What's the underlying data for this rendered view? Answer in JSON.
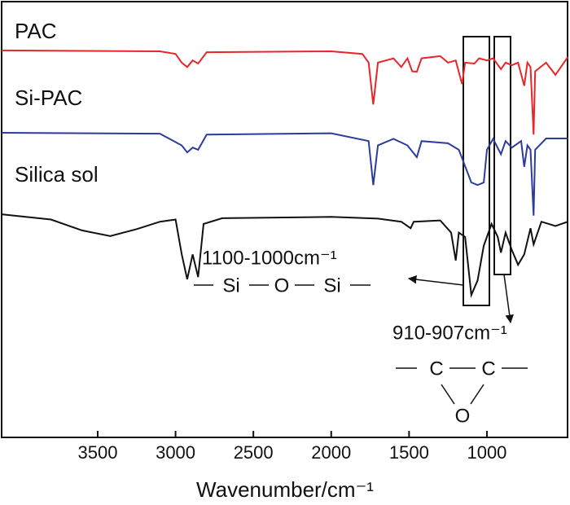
{
  "chart_data": {
    "type": "line",
    "x_label": "Wavenumber/cm⁻¹",
    "xlim": [
      4117,
      482
    ],
    "xticks": [
      3500,
      3000,
      2500,
      2000,
      1500,
      1000
    ],
    "ylim": [
      0,
      100
    ],
    "series": [
      {
        "name": "PAC",
        "color": "#e8262a",
        "x": [
          4117,
          3100,
          3000,
          2960,
          2925,
          2890,
          2855,
          2800,
          2000,
          1800,
          1760,
          1730,
          1700,
          1600,
          1550,
          1510,
          1480,
          1450,
          1420,
          1300,
          1250,
          1200,
          1160,
          1140,
          1080,
          1050,
          1000,
          960,
          910,
          880,
          840,
          800,
          760,
          740,
          720,
          700,
          690,
          620,
          560,
          480
        ],
        "values": [
          88.8,
          88.6,
          88,
          86,
          85,
          86.5,
          85.8,
          88.4,
          88.6,
          88,
          86,
          76.4,
          86,
          87,
          85,
          87,
          84,
          83.9,
          87,
          87.5,
          86,
          86.5,
          81.1,
          86,
          85.8,
          87,
          86.5,
          87,
          84.5,
          86,
          85.4,
          86,
          80.7,
          86,
          85,
          69.5,
          84,
          86,
          83.2,
          87.3
        ]
      },
      {
        "name": "Si-PAC",
        "color": "#2b3d9c",
        "x": [
          4117,
          3100,
          2960,
          2925,
          2890,
          2855,
          2800,
          2000,
          1760,
          1730,
          1700,
          1600,
          1510,
          1450,
          1420,
          1250,
          1180,
          1100,
          1060,
          1020,
          1000,
          960,
          910,
          880,
          840,
          780,
          760,
          740,
          720,
          700,
          690,
          620,
          480
        ],
        "values": [
          69.9,
          69.7,
          67,
          65.4,
          66.5,
          66,
          69.5,
          69.8,
          68,
          57.9,
          67,
          68.5,
          67,
          64.3,
          68,
          67.5,
          66,
          58.5,
          57.9,
          58.5,
          66,
          68.5,
          65,
          68,
          66.5,
          68,
          62.1,
          67,
          66,
          50.9,
          66,
          68.6,
          68.6
        ]
      },
      {
        "name": "Silica sol",
        "color": "#111111",
        "x": [
          4117,
          3800,
          3600,
          3420,
          3250,
          3100,
          3000,
          2960,
          2925,
          2890,
          2855,
          2820,
          2700,
          2000,
          1700,
          1550,
          1490,
          1470,
          1300,
          1230,
          1200,
          1180,
          1140,
          1100,
          1060,
          1020,
          970,
          930,
          910,
          880,
          840,
          800,
          760,
          720,
          700,
          650,
          560,
          480
        ],
        "values": [
          51.2,
          50,
          47.5,
          46.2,
          47.8,
          49.5,
          50,
          42,
          36.3,
          42,
          36.8,
          49,
          50.3,
          50.6,
          50.2,
          49.5,
          48,
          49.5,
          49.8,
          47,
          40.6,
          47,
          46,
          32.7,
          36,
          44,
          49,
          46,
          42.4,
          47,
          43,
          39.6,
          42,
          48,
          44.3,
          49.5,
          48.5,
          49.5
        ]
      }
    ],
    "annotations": [
      "1100-1000cm⁻¹",
      "Si",
      "O",
      "Si",
      "910-907cm⁻¹",
      "C",
      "C",
      "O"
    ]
  }
}
